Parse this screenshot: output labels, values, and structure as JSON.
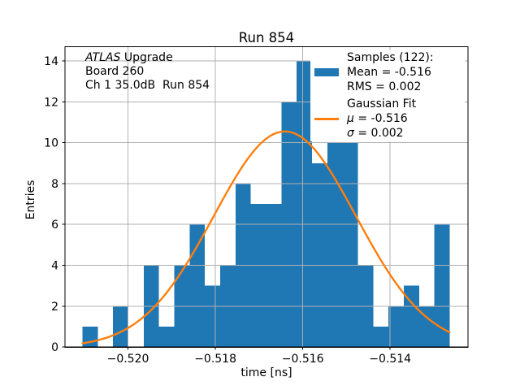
{
  "chart_data": {
    "type": "bar",
    "subtype": "histogram-with-gaussian-fit",
    "title": "Run 854",
    "xlabel": "time [ns]",
    "ylabel": "Entries",
    "xlim": [
      -0.52144,
      -0.51222
    ],
    "ylim": [
      0,
      14.69
    ],
    "xticks": [
      -0.52,
      -0.518,
      -0.516,
      -0.514
    ],
    "xtick_labels": [
      "−0.520",
      "−0.518",
      "−0.516",
      "−0.514"
    ],
    "yticks": [
      0,
      2,
      4,
      6,
      8,
      10,
      12,
      14
    ],
    "grid": true,
    "bin_start": -0.52104,
    "bin_width": 0.00035,
    "counts": [
      1,
      0,
      2,
      0,
      4,
      1,
      4,
      6,
      3,
      4,
      8,
      7,
      7,
      12,
      14,
      9,
      10,
      10,
      4,
      1,
      2,
      3,
      2,
      6
    ],
    "fit_curve": {
      "mu": -0.51641,
      "sigma": 0.00163,
      "peak": 10.55
    },
    "colors": {
      "bar": "#1f77b4",
      "curve": "#ff7f0e",
      "grid": "#b0b0b0",
      "axis": "#000000",
      "background": "#ffffff"
    },
    "annotation": {
      "lines": [
        {
          "italic": "ATLAS",
          "text": " Upgrade"
        },
        {
          "italic": "",
          "text": "Board 260"
        },
        {
          "italic": "",
          "text": "Ch 1 35.0dB  Run 854"
        }
      ]
    },
    "legend": {
      "rows": [
        {
          "swatch": "",
          "italic": "",
          "text": "Samples (122):",
          "gap": false
        },
        {
          "swatch": "patch",
          "italic": "",
          "text": "Mean = -0.516",
          "gap": false
        },
        {
          "swatch": "",
          "italic": "",
          "text": "RMS = 0.002",
          "gap": false
        },
        {
          "swatch": "",
          "italic": "",
          "text": "Gaussian Fit",
          "gap": true
        },
        {
          "swatch": "line",
          "italic": "μ",
          "text": " = -0.516",
          "gap": false
        },
        {
          "swatch": "",
          "italic": "σ",
          "text": " = 0.002",
          "gap": false
        }
      ]
    }
  }
}
